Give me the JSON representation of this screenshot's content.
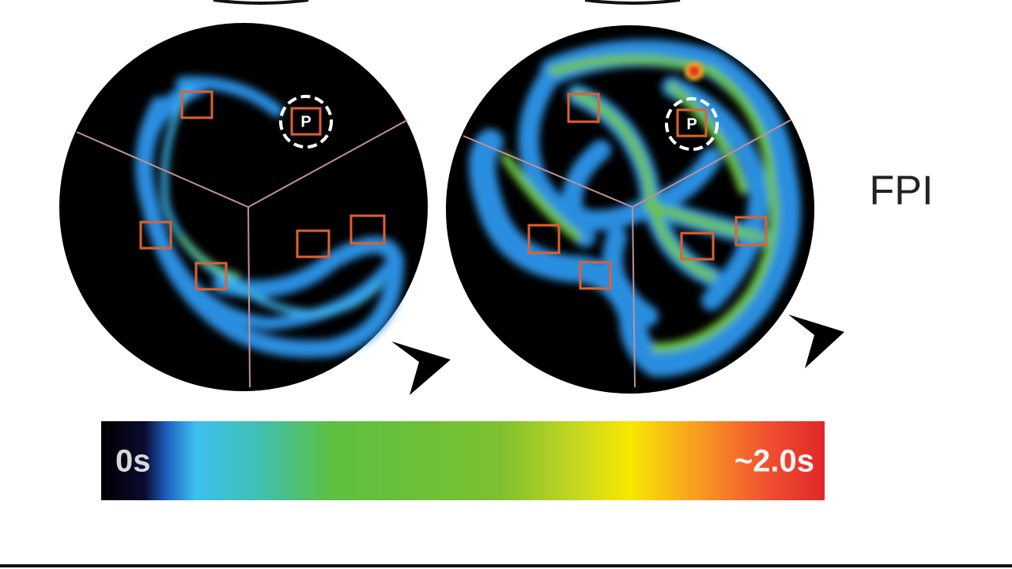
{
  "panels": [
    {
      "platform_label": "P"
    },
    {
      "platform_label": "P"
    }
  ],
  "group_label": "FPI",
  "colorbar": {
    "min_label": "0s",
    "max_label": "~2.0s"
  }
}
